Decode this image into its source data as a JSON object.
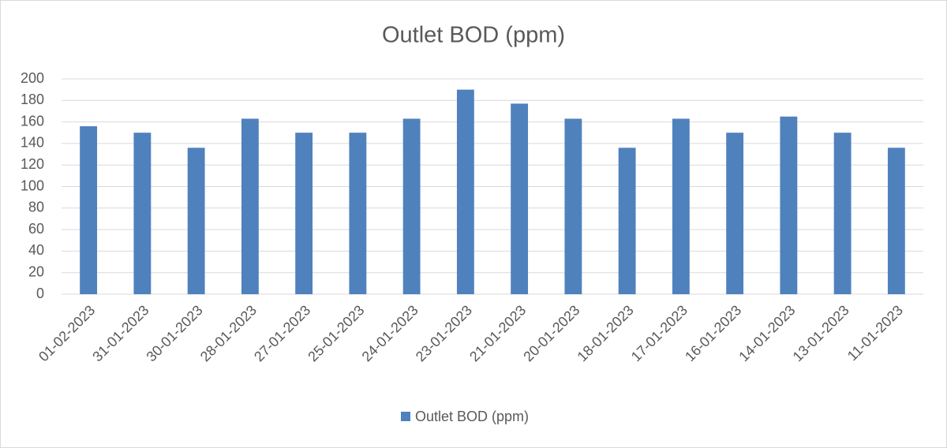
{
  "chart_data": {
    "type": "bar",
    "title": "Outlet BOD (ppm)",
    "categories": [
      "01-02-2023",
      "31-01-2023",
      "30-01-2023",
      "28-01-2023",
      "27-01-2023",
      "25-01-2023",
      "24-01-2023",
      "23-01-2023",
      "21-01-2023",
      "20-01-2023",
      "18-01-2023",
      "17-01-2023",
      "16-01-2023",
      "14-01-2023",
      "13-01-2023",
      "11-01-2023"
    ],
    "series": [
      {
        "name": "Outlet BOD (ppm)",
        "color": "#4f81bd",
        "values": [
          156,
          150,
          136,
          163,
          150,
          150,
          163,
          190,
          177,
          163,
          136,
          163,
          150,
          165,
          150,
          136
        ]
      }
    ],
    "ylim": [
      0,
      200
    ],
    "yticks": [
      0,
      20,
      40,
      60,
      80,
      100,
      120,
      140,
      160,
      180,
      200
    ],
    "grid": true,
    "legend": "bottom"
  }
}
